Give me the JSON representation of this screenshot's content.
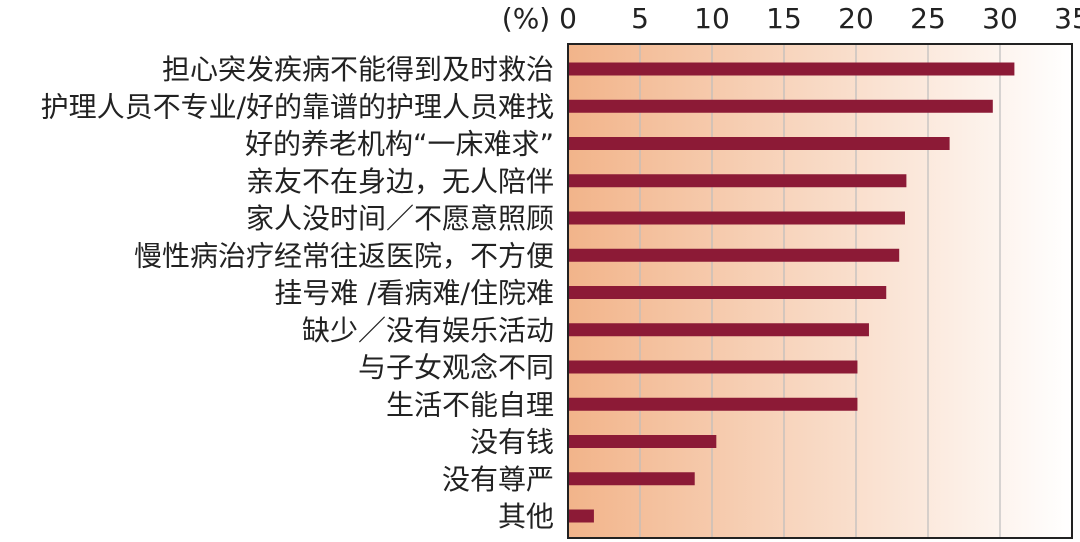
{
  "chart_data": {
    "type": "bar",
    "orientation": "horizontal",
    "unit_label": "(%)",
    "categories": [
      "担心突发疾病不能得到及时救治",
      "护理人员不专业/好的靠谱的护理人员难找",
      "好的养老机构“一床难求”",
      "亲友不在身边，无人陪伴",
      "家人没时间／不愿意照顾",
      "慢性病治疗经常往返医院，不方便",
      "挂号难 /看病难/住院难",
      "缺少／没有娱乐活动",
      "与子女观念不同",
      "生活不能自理",
      "没有钱",
      "没有尊严",
      "其他"
    ],
    "values": [
      31,
      29.5,
      26.5,
      23.5,
      23.4,
      23,
      22.1,
      20.9,
      20.1,
      20.1,
      10.3,
      8.8,
      1.8
    ],
    "xlim": [
      0,
      35
    ],
    "xticks": [
      0,
      5,
      10,
      15,
      20,
      25,
      30,
      35
    ],
    "grid": true,
    "bar_color": "#8c1a36",
    "background_gradient": [
      "#f2b48a",
      "#ffffff"
    ]
  }
}
